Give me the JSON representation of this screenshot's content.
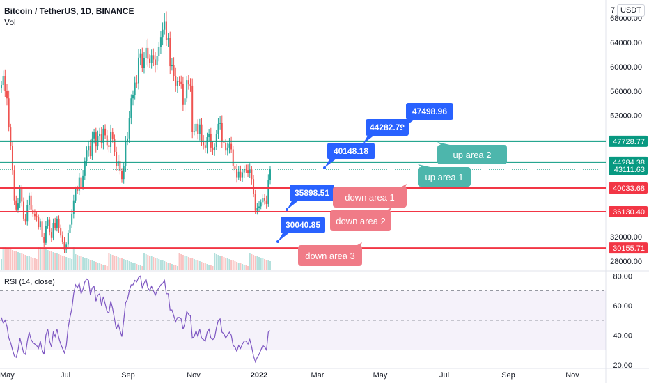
{
  "header": {
    "title": "Bitcoin / TetherUS, 1D, BINANCE",
    "volume_label": "Vol",
    "currency_badge": "USDT",
    "top_tick": "7"
  },
  "rsi": {
    "label": "RSI (14, close)",
    "upper_band": 70,
    "middle_band": 50,
    "lower_band": 30,
    "ticks": [
      "80.00",
      "60.00",
      "40.00",
      "20.00"
    ]
  },
  "chart_data": {
    "type": "candlestick",
    "symbol": "BTCUSDT",
    "interval": "1D",
    "exchange": "BINANCE",
    "y_ticks": [
      "68000.00",
      "64000.00",
      "60000.00",
      "56000.00",
      "52000.00",
      "32000.00",
      "28000.00"
    ],
    "x_ticks": [
      "May",
      "Jul",
      "Sep",
      "Nov",
      "2022",
      "Mar",
      "May",
      "Jul",
      "Sep",
      "Nov"
    ],
    "ylim": [
      26500,
      71000
    ],
    "levels": [
      {
        "name": "up area 2",
        "price": 47728.77,
        "label": "47728.77",
        "color": "#089981"
      },
      {
        "name": "up area 1",
        "price": 44284.38,
        "label": "44284.38",
        "color": "#089981"
      },
      {
        "name": "current",
        "price": 43111.63,
        "label": "43111.63",
        "color": "#089981"
      },
      {
        "name": "down area 1",
        "price": 40033.68,
        "label": "40033.68",
        "color": "#f23645"
      },
      {
        "name": "down area 2",
        "price": 36130.4,
        "label": "36130.40",
        "color": "#f23645"
      },
      {
        "name": "down area 3",
        "price": 30155.71,
        "label": "30155.71",
        "color": "#f23645"
      }
    ],
    "price_path": [
      {
        "label": "30040.85",
        "value": 30040.85
      },
      {
        "label": "35898.51",
        "value": 35898.51
      },
      {
        "label": "40148.18",
        "value": 40148.18
      },
      {
        "label": "44282.79",
        "value": 44282.79
      },
      {
        "label": "47498.96",
        "value": 47498.96
      }
    ],
    "callouts": [
      {
        "text": "up area 2",
        "color": "#4db6ac"
      },
      {
        "text": "up area 1",
        "color": "#4db6ac"
      },
      {
        "text": "down area 1",
        "color": "#f07b87"
      },
      {
        "text": "down area 2",
        "color": "#f07b87"
      },
      {
        "text": "down area 3",
        "color": "#f07b87"
      }
    ],
    "closes": [
      57000,
      58500,
      56000,
      54800,
      50000,
      47000,
      43000,
      38000,
      36500,
      37500,
      40000,
      37800,
      35000,
      34500,
      37200,
      38800,
      36500,
      35800,
      35400,
      35200,
      33600,
      34500,
      32000,
      31000,
      33800,
      34800,
      32800,
      31800,
      34300,
      33500,
      35000,
      33400,
      32200,
      31200,
      29900,
      30700,
      32600,
      34000,
      35800,
      38000,
      39800,
      39600,
      41800,
      40200,
      42000,
      44500,
      46200,
      47000,
      45300,
      48200,
      49200,
      46900,
      48600,
      48900,
      47400,
      49800,
      48700,
      47100,
      46800,
      49300,
      48100,
      46000,
      43700,
      44500,
      42800,
      41500,
      43600,
      47700,
      48200,
      51500,
      54800,
      55300,
      57400,
      57300,
      61500,
      62200,
      59800,
      61400,
      63100,
      61300,
      60600,
      61900,
      61200,
      60300,
      61800,
      63300,
      64900,
      66100,
      67500,
      64400,
      64800,
      60100,
      60300,
      58500,
      56900,
      57600,
      57500,
      57200,
      53700,
      54800,
      57800,
      57100,
      56900,
      49300,
      49400,
      50600,
      48900,
      50500,
      47600,
      47100,
      46700,
      48400,
      48900,
      46700,
      46300,
      46800,
      48900,
      50600,
      50800,
      47600,
      47400,
      46200,
      46700,
      47300,
      46400,
      43600,
      43200,
      41800,
      42700,
      41800,
      42600,
      43100,
      43000,
      42500,
      43100,
      41500,
      39000,
      36300,
      36800,
      37000,
      37700,
      38400,
      38000,
      37400,
      41300,
      43111
    ],
    "rsi_values": [
      52,
      48,
      50,
      46,
      38,
      35,
      30,
      26,
      25,
      30,
      38,
      33,
      28,
      27,
      36,
      42,
      37,
      35,
      34,
      33,
      31,
      36,
      30,
      27,
      40,
      44,
      36,
      32,
      42,
      39,
      44,
      38,
      34,
      31,
      28,
      33,
      45,
      52,
      58,
      68,
      74,
      72,
      75,
      68,
      71,
      76,
      78,
      77,
      67,
      72,
      73,
      63,
      67,
      68,
      60,
      66,
      61,
      56,
      55,
      63,
      58,
      51,
      44,
      48,
      43,
      39,
      50,
      62,
      64,
      70,
      74,
      74,
      77,
      76,
      79,
      80,
      72,
      75,
      78,
      72,
      70,
      73,
      70,
      67,
      70,
      72,
      74,
      75,
      77,
      68,
      68,
      57,
      57,
      53,
      49,
      52,
      52,
      51,
      44,
      48,
      56,
      54,
      53,
      38,
      39,
      43,
      39,
      44,
      38,
      37,
      36,
      42,
      44,
      38,
      37,
      38,
      45,
      50,
      51,
      42,
      41,
      38,
      40,
      42,
      40,
      33,
      32,
      29,
      33,
      31,
      34,
      36,
      36,
      34,
      37,
      32,
      26,
      22,
      25,
      27,
      30,
      33,
      32,
      30,
      42,
      43
    ]
  }
}
